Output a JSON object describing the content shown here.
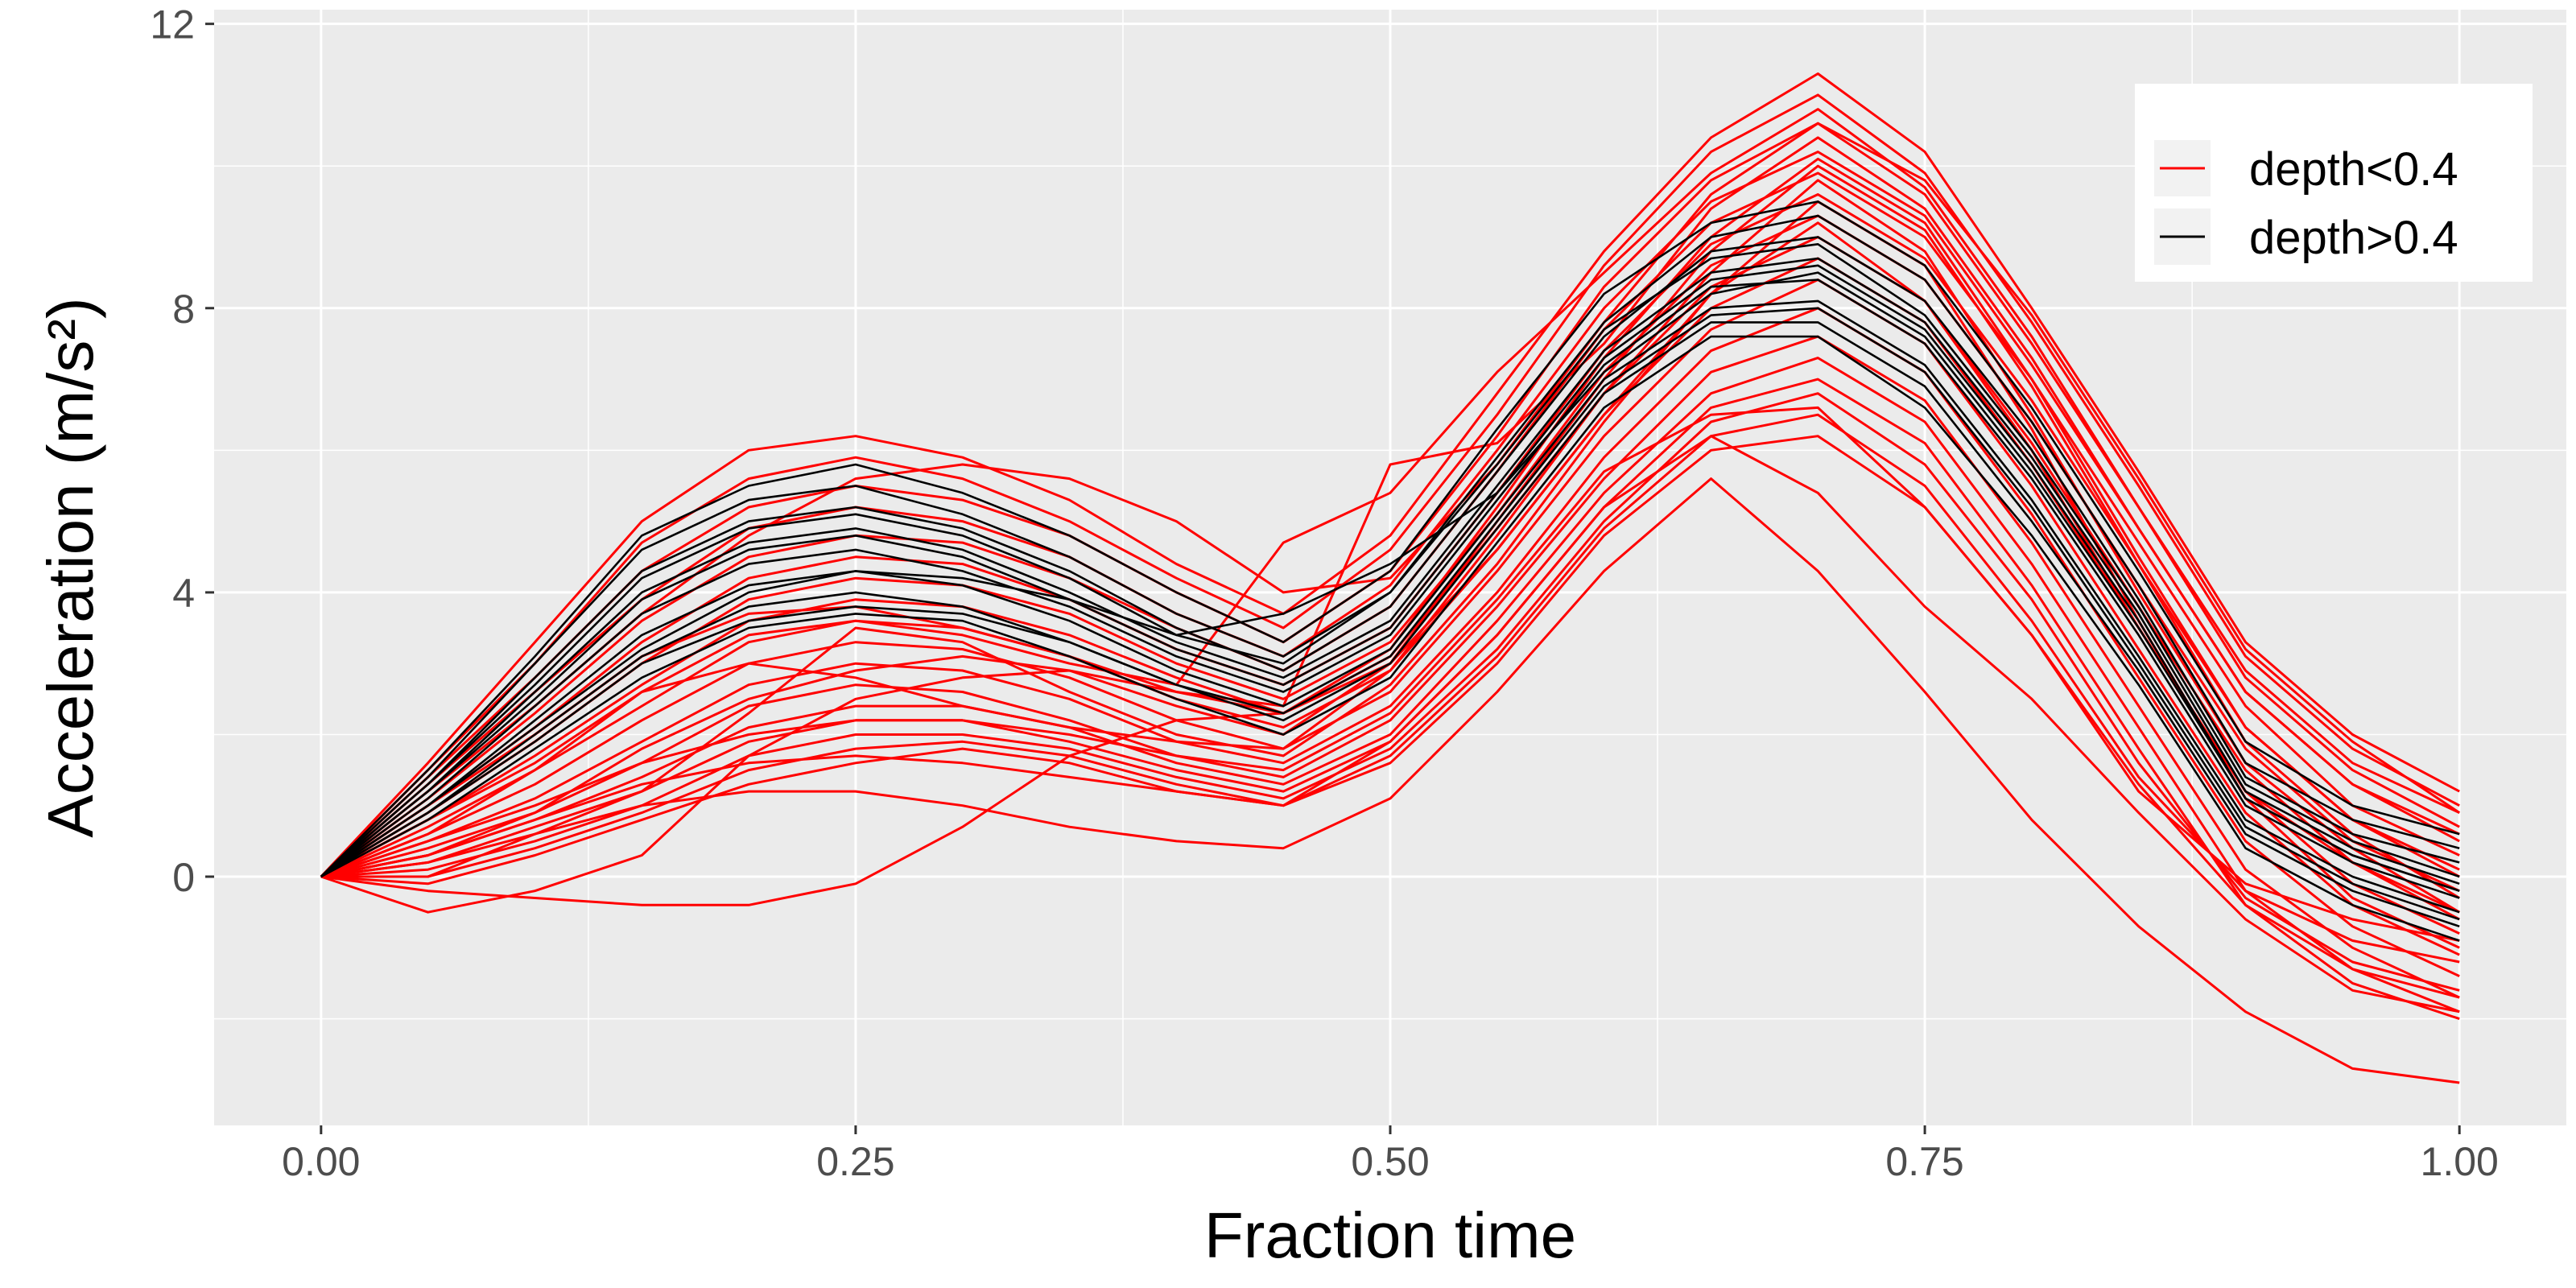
{
  "chart_data": {
    "type": "line",
    "title": "",
    "xlabel": "Fraction time",
    "ylabel": "Acceleration (m/s²)",
    "xlim": [
      -0.05,
      1.05
    ],
    "ylim": [
      -3.5,
      12.2
    ],
    "x_ticks": [
      0.0,
      0.25,
      0.5,
      0.75,
      1.0
    ],
    "x_tick_labels": [
      "0.00",
      "0.25",
      "0.50",
      "0.75",
      "1.00"
    ],
    "y_ticks": [
      0,
      4,
      8,
      12
    ],
    "y_tick_labels": [
      "0",
      "4",
      "8",
      "12"
    ],
    "grid": true,
    "legend_position": "top-right",
    "x": [
      0.0,
      0.05,
      0.1,
      0.15,
      0.2,
      0.25,
      0.3,
      0.35,
      0.4,
      0.45,
      0.5,
      0.55,
      0.6,
      0.65,
      0.7,
      0.75,
      0.8,
      0.85,
      0.9,
      0.95,
      1.0
    ],
    "series": [
      {
        "name": "depth<0.4",
        "color": "#ff0000",
        "curves": [
          [
            0,
            1.6,
            3.3,
            5.0,
            6.0,
            6.2,
            5.9,
            5.3,
            4.4,
            3.7,
            4.8,
            6.8,
            8.8,
            10.4,
            11.3,
            10.2,
            8.0,
            5.7,
            3.3,
            2.0,
            1.2
          ],
          [
            0,
            1.5,
            3.0,
            4.7,
            5.6,
            5.9,
            5.6,
            5.0,
            4.2,
            3.5,
            4.6,
            6.5,
            8.6,
            10.2,
            11.0,
            9.9,
            7.8,
            5.5,
            3.1,
            1.8,
            1.0
          ],
          [
            0,
            1.4,
            2.8,
            4.3,
            5.2,
            5.5,
            5.3,
            4.8,
            4.0,
            3.3,
            4.3,
            6.2,
            8.3,
            9.8,
            10.6,
            9.6,
            7.5,
            5.2,
            2.8,
            1.5,
            0.7
          ],
          [
            0,
            1.3,
            2.6,
            3.9,
            4.9,
            5.2,
            5.0,
            4.5,
            3.7,
            3.1,
            4.1,
            6.0,
            8.0,
            9.5,
            10.2,
            9.3,
            7.2,
            4.9,
            2.6,
            1.3,
            0.5
          ],
          [
            0,
            1.1,
            2.3,
            3.6,
            4.5,
            4.8,
            4.7,
            4.2,
            3.5,
            2.9,
            3.8,
            5.7,
            7.7,
            9.2,
            9.9,
            9.0,
            7.0,
            4.7,
            2.4,
            1.0,
            0.3
          ],
          [
            0,
            1.0,
            2.1,
            3.3,
            4.2,
            4.5,
            4.4,
            3.9,
            3.2,
            2.7,
            3.5,
            5.4,
            7.4,
            8.9,
            9.6,
            8.7,
            6.7,
            4.4,
            2.1,
            0.8,
            0.0
          ],
          [
            0,
            0.9,
            1.9,
            3.0,
            3.9,
            4.2,
            4.1,
            3.7,
            3.0,
            2.5,
            3.3,
            5.1,
            7.1,
            8.6,
            9.3,
            8.4,
            6.4,
            4.1,
            1.8,
            0.5,
            -0.2
          ],
          [
            0,
            0.8,
            1.7,
            2.7,
            3.6,
            3.9,
            3.8,
            3.4,
            2.8,
            2.3,
            3.1,
            4.9,
            6.8,
            8.3,
            9.0,
            8.1,
            6.1,
            3.8,
            1.5,
            0.2,
            -0.5
          ],
          [
            0,
            0.7,
            1.5,
            2.4,
            3.3,
            3.6,
            3.5,
            3.1,
            2.5,
            2.1,
            2.9,
            4.6,
            6.5,
            8.0,
            8.7,
            7.8,
            5.8,
            3.5,
            1.2,
            -0.1,
            -0.8
          ],
          [
            0,
            0.6,
            1.3,
            2.2,
            3.0,
            3.3,
            3.2,
            2.8,
            2.2,
            1.8,
            2.6,
            4.3,
            6.2,
            7.7,
            8.4,
            7.5,
            5.5,
            3.2,
            0.9,
            -0.4,
            -1.1
          ],
          [
            0,
            0.5,
            1.1,
            1.9,
            2.7,
            3.0,
            2.9,
            2.5,
            1.9,
            1.6,
            2.4,
            4.0,
            5.9,
            7.4,
            8.0,
            7.1,
            5.1,
            2.8,
            0.5,
            -0.7,
            -1.4
          ],
          [
            0,
            0.4,
            0.9,
            1.6,
            2.4,
            2.7,
            2.6,
            2.2,
            1.7,
            1.4,
            2.2,
            3.8,
            5.6,
            7.1,
            7.6,
            6.7,
            4.7,
            2.4,
            0.1,
            -1.0,
            -1.7
          ],
          [
            0,
            0.3,
            0.8,
            1.4,
            2.1,
            2.4,
            2.4,
            2.1,
            1.6,
            1.3,
            2.0,
            3.6,
            5.4,
            6.8,
            7.3,
            6.4,
            4.4,
            2.1,
            -0.2,
            -1.3,
            -1.9
          ],
          [
            0,
            0.2,
            0.7,
            1.2,
            1.9,
            2.2,
            2.2,
            1.9,
            1.5,
            1.2,
            1.9,
            3.4,
            5.2,
            6.6,
            7.0,
            6.1,
            4.1,
            1.8,
            -0.4,
            -1.5,
            -2.0
          ],
          [
            0,
            0.1,
            0.5,
            1.0,
            1.7,
            2.0,
            2.0,
            1.8,
            1.4,
            1.1,
            1.8,
            3.2,
            5.0,
            6.4,
            6.8,
            5.8,
            3.9,
            1.6,
            -0.3,
            -1.2,
            -1.6
          ],
          [
            0,
            0.0,
            0.4,
            0.9,
            1.5,
            1.8,
            1.9,
            1.7,
            1.3,
            1.0,
            1.7,
            3.1,
            4.9,
            6.2,
            6.5,
            5.5,
            3.6,
            1.4,
            -0.2,
            -0.9,
            -1.2
          ],
          [
            0,
            -0.1,
            0.3,
            0.8,
            1.3,
            1.6,
            1.8,
            1.6,
            1.2,
            1.0,
            1.6,
            3.0,
            4.8,
            6.0,
            6.2,
            5.2,
            3.4,
            1.2,
            -0.1,
            -0.6,
            -0.9
          ],
          [
            0,
            0.0,
            0.6,
            1.2,
            2.3,
            3.5,
            3.3,
            2.6,
            2.0,
            1.7,
            2.7,
            4.4,
            6.4,
            8.2,
            9.5,
            8.6,
            6.3,
            3.6,
            1.1,
            -0.3,
            -1.0
          ],
          [
            0,
            0.6,
            1.5,
            2.6,
            3.0,
            2.8,
            2.4,
            2.1,
            1.9,
            1.8,
            2.9,
            4.8,
            6.8,
            8.5,
            9.8,
            8.8,
            6.5,
            4.0,
            1.6,
            0.4,
            -0.5
          ],
          [
            0,
            0.3,
            0.9,
            1.8,
            2.5,
            2.9,
            3.1,
            2.9,
            2.4,
            2.0,
            3.0,
            5.0,
            7.0,
            8.8,
            10.0,
            9.1,
            6.9,
            4.4,
            1.9,
            0.6,
            -0.3
          ],
          [
            0,
            1.2,
            2.4,
            3.7,
            4.8,
            5.6,
            5.8,
            5.6,
            5.0,
            4.0,
            4.2,
            5.8,
            7.8,
            9.6,
            10.6,
            9.8,
            7.9,
            5.6,
            3.2,
            1.9,
            0.9
          ],
          [
            0,
            -0.2,
            -0.3,
            -0.4,
            -0.4,
            -0.1,
            0.7,
            1.7,
            2.2,
            2.3,
            3.0,
            4.6,
            6.5,
            8.2,
            9.2,
            8.1,
            6.0,
            3.5,
            1.2,
            0.2,
            -0.6
          ],
          [
            0,
            -0.5,
            -0.2,
            0.3,
            1.7,
            2.5,
            2.8,
            2.9,
            2.6,
            2.3,
            3.2,
            5.2,
            7.3,
            9.0,
            10.1,
            9.2,
            7.0,
            4.5,
            2.1,
            0.8,
            0.1
          ],
          [
            0,
            0.2,
            0.6,
            1.0,
            1.2,
            1.2,
            1.0,
            0.7,
            0.5,
            0.4,
            1.1,
            2.6,
            4.3,
            5.6,
            4.3,
            2.6,
            0.8,
            -0.7,
            -1.9,
            -2.7,
            -2.9
          ],
          [
            0,
            0.3,
            0.8,
            1.3,
            1.6,
            1.7,
            1.6,
            1.4,
            1.2,
            1.0,
            1.9,
            3.4,
            5.2,
            6.2,
            5.4,
            3.8,
            2.5,
            0.9,
            -0.6,
            -1.6,
            -1.9
          ],
          [
            0,
            0.5,
            1.0,
            1.6,
            2.0,
            2.2,
            2.2,
            2.0,
            1.7,
            1.5,
            2.3,
            3.9,
            5.7,
            6.5,
            6.6,
            5.2,
            3.4,
            1.3,
            -0.4,
            -1.3,
            -1.7
          ],
          [
            0,
            1.0,
            2.0,
            3.1,
            3.7,
            3.8,
            3.5,
            3.1,
            2.6,
            2.4,
            5.8,
            6.1,
            7.5,
            9.4,
            10.4,
            9.4,
            7.3,
            4.9,
            2.6,
            1.3,
            0.6
          ],
          [
            0,
            0.8,
            1.6,
            2.6,
            3.4,
            3.6,
            3.4,
            3.0,
            2.7,
            4.7,
            5.4,
            7.1,
            8.5,
            9.9,
            10.8,
            9.7,
            7.6,
            5.2,
            2.9,
            1.6,
            0.9
          ]
        ]
      },
      {
        "name": "depth>0.4",
        "color": "#000000",
        "curves": [
          [
            0,
            1.4,
            3.0,
            4.6,
            5.3,
            5.5,
            5.1,
            4.5,
            3.7,
            3.1,
            4.0,
            5.9,
            7.8,
            9.0,
            9.3,
            8.4,
            6.4,
            4.1,
            1.6,
            0.8,
            0.4
          ],
          [
            0,
            1.3,
            2.8,
            4.3,
            5.0,
            5.2,
            4.9,
            4.3,
            3.5,
            2.9,
            3.8,
            5.7,
            7.6,
            8.8,
            9.0,
            8.1,
            6.2,
            3.9,
            1.4,
            0.6,
            0.2
          ],
          [
            0,
            1.2,
            2.6,
            4.0,
            4.7,
            4.9,
            4.6,
            4.0,
            3.3,
            2.8,
            3.6,
            5.5,
            7.4,
            8.5,
            8.7,
            7.8,
            5.9,
            3.7,
            1.2,
            0.4,
            -0.1
          ],
          [
            0,
            1.1,
            2.4,
            3.7,
            4.4,
            4.6,
            4.3,
            3.8,
            3.1,
            2.6,
            3.4,
            5.3,
            7.2,
            8.3,
            8.4,
            7.5,
            5.6,
            3.4,
            1.0,
            0.2,
            -0.3
          ],
          [
            0,
            1.0,
            2.2,
            3.4,
            4.1,
            4.3,
            4.1,
            3.6,
            2.9,
            2.4,
            3.2,
            5.1,
            7.0,
            8.0,
            8.1,
            7.2,
            5.3,
            3.1,
            0.8,
            0.0,
            -0.5
          ],
          [
            0,
            0.9,
            2.0,
            3.1,
            3.8,
            4.0,
            3.8,
            3.3,
            2.7,
            2.2,
            3.0,
            4.9,
            6.8,
            7.8,
            7.8,
            6.9,
            5.0,
            2.9,
            0.6,
            -0.2,
            -0.7
          ],
          [
            0,
            0.8,
            1.8,
            2.8,
            3.5,
            3.7,
            3.6,
            3.1,
            2.5,
            2.0,
            2.8,
            4.7,
            6.6,
            7.6,
            7.6,
            6.6,
            4.8,
            2.7,
            0.4,
            -0.4,
            -0.9
          ],
          [
            0,
            1.5,
            3.1,
            4.8,
            5.5,
            5.8,
            5.4,
            4.8,
            4.0,
            3.3,
            4.3,
            6.3,
            8.2,
            9.2,
            9.5,
            8.6,
            6.6,
            4.3,
            1.9,
            1.0,
            0.6
          ],
          [
            0,
            1.3,
            2.7,
            4.2,
            4.9,
            5.1,
            4.8,
            4.2,
            3.4,
            3.0,
            4.0,
            5.8,
            7.7,
            8.7,
            8.9,
            7.9,
            6.0,
            3.8,
            1.3,
            0.5,
            0.0
          ],
          [
            0,
            0.9,
            1.9,
            3.0,
            3.6,
            3.8,
            3.7,
            3.3,
            2.7,
            2.3,
            3.1,
            5.0,
            6.9,
            7.9,
            8.0,
            7.1,
            5.2,
            3.0,
            0.7,
            -0.1,
            -0.6
          ],
          [
            0,
            1.0,
            2.1,
            3.2,
            4.0,
            4.3,
            4.2,
            3.9,
            3.4,
            3.7,
            4.4,
            5.4,
            7.1,
            8.2,
            8.5,
            7.6,
            5.7,
            3.5,
            1.1,
            0.3,
            -0.2
          ],
          [
            0,
            1.2,
            2.5,
            3.9,
            4.6,
            4.8,
            4.5,
            3.9,
            3.2,
            2.7,
            3.5,
            5.4,
            7.3,
            8.4,
            8.6,
            7.7,
            5.8,
            3.6,
            1.1,
            0.3,
            -0.2
          ]
        ]
      }
    ]
  }
}
